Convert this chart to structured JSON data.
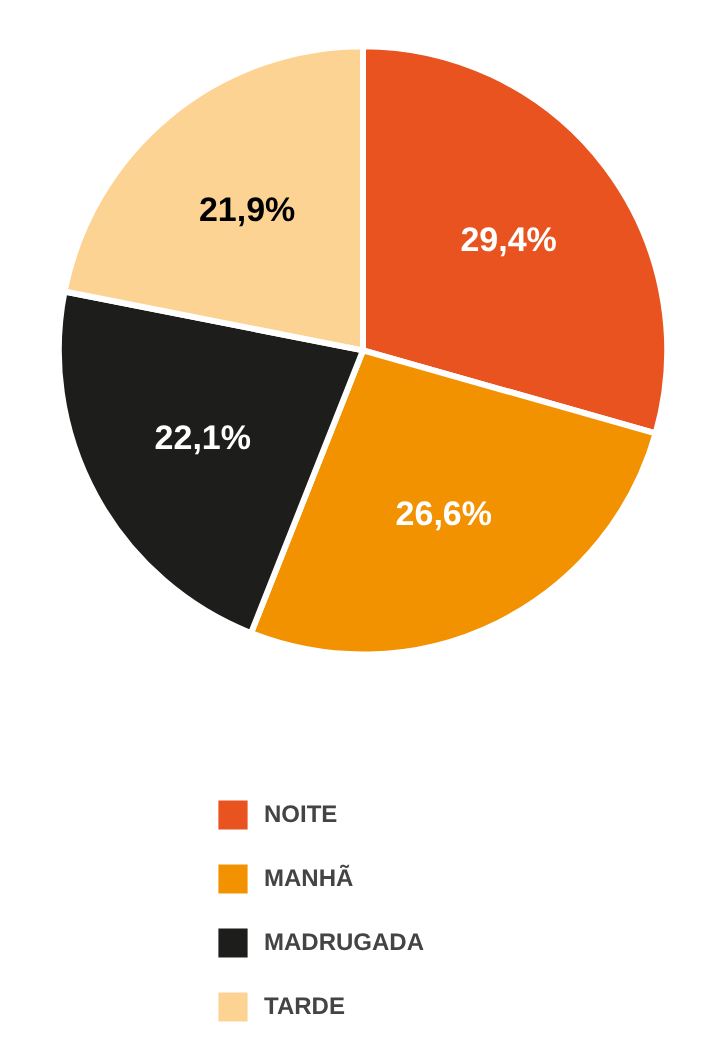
{
  "chart_data": {
    "type": "pie",
    "categories": [
      "NOITE",
      "MANHÃ",
      "MADRUGADA",
      "TARDE"
    ],
    "values": [
      29.4,
      26.6,
      22.1,
      21.9
    ],
    "colors": [
      "#e8531f",
      "#f39200",
      "#1d1d1b",
      "#fdd394"
    ],
    "value_labels": [
      "29,4%",
      "26,6%",
      "22,1%",
      "21,9%"
    ],
    "legend": "bottom"
  }
}
